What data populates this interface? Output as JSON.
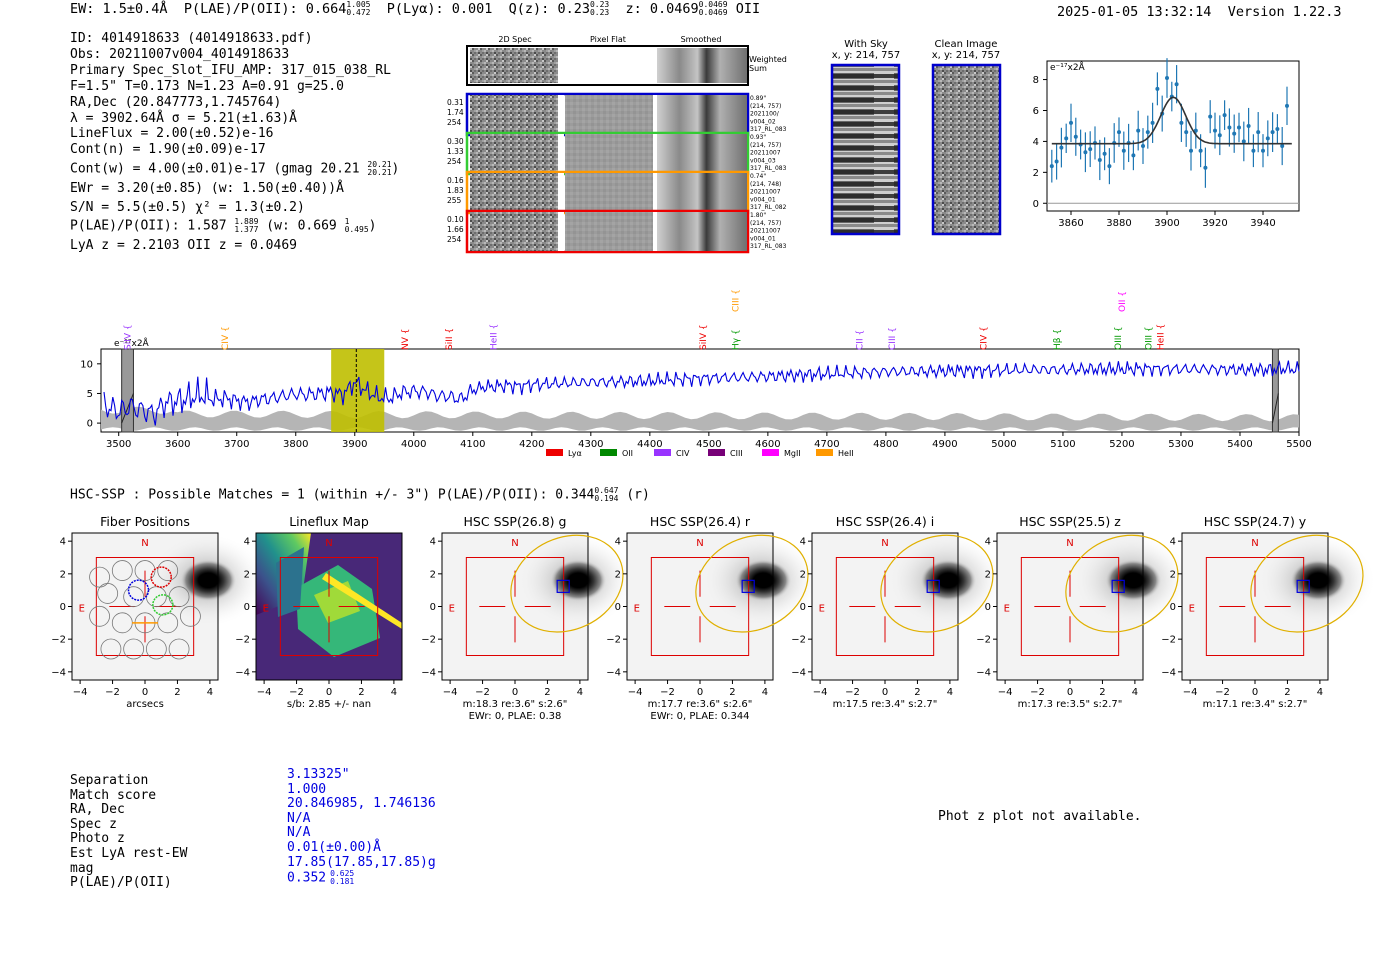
{
  "header": {
    "ew": "EW: 1.5±0.4Å",
    "plae_label": "P(LAE)/P(OII): 0.664",
    "plae_hi": "1.005",
    "plae_lo": "0.472",
    "plya": "P(Lyα): 0.001",
    "qz_label": "Q(z): 0.23",
    "qz_hi": "0.23",
    "qz_lo": "0.23",
    "z_label": "z: 0.0469",
    "z_hi": "0.0469",
    "z_lo": "0.0469",
    "z_line": "OII",
    "datetime": "2025-01-05 13:32:14",
    "version": "Version 1.22.3"
  },
  "info": {
    "id": "ID: 4014918633 (4014918633.pdf)",
    "obs": "Obs: 20211007v004_4014918633",
    "primary": "Primary Spec_Slot_IFU_AMP: 317_015_038_RL",
    "params": "F=1.5\"  T=0.173  N=1.23  A=0.91  g=25.0",
    "radec": "RA,Dec (20.847773,1.745764)",
    "lambda": "λ = 3902.64Å  σ = 5.21(±1.63)Å",
    "lineflux": "LineFlux = 2.00(±0.52)e-16",
    "contn": "Cont(n) = 1.90(±0.09)e-17",
    "contw": "Cont(w) = 4.00(±0.01)e-17 (gmag 20.21",
    "contw_hi": "20.21",
    "contw_lo": "20.21",
    "ewr": "EWr = 3.20(±0.85) (w: 1.50(±0.40))Å",
    "sn": "S/N = 5.5(±0.5)  χ² = 1.3(±0.2)",
    "plae2": "P(LAE)/P(OII): 1.587",
    "plae2_hi": "1.889",
    "plae2_lo": "1.377",
    "plae2_w": "(w: 0.669",
    "plae2_w_hi": "1",
    "plae2_w_lo": "0.495",
    "lya": "LyA z = 2.2103   OII z = 0.0469"
  },
  "cutouts": {
    "col_titles": [
      "2D Spec",
      "Pixel Flat",
      "Smoothed"
    ],
    "weighted_sum": [
      "Weighted",
      "Sum"
    ],
    "rows": [
      {
        "left": [
          "0.31",
          "1.74",
          "254"
        ],
        "right": [
          "0.89\"",
          "(214, 757)",
          "2021100/",
          "v004_02",
          "317_RL_083"
        ],
        "color": "#0000cc"
      },
      {
        "left": [
          "0.30",
          "1.33",
          "254"
        ],
        "right": [
          "0.93\"",
          "(214, 757)",
          "20211007",
          "v004_03",
          "317_RL_083"
        ],
        "color": "#33cc33"
      },
      {
        "left": [
          "0.16",
          "1.83",
          "255"
        ],
        "right": [
          "0.74\"",
          "(214, 748)",
          "20211007",
          "v004_01",
          "317_RL_082"
        ],
        "color": "#ff9900"
      },
      {
        "left": [
          "0.10",
          "1.66",
          "254"
        ],
        "right": [
          "1.80\"",
          "(214, 757)",
          "20211007",
          "v004_01",
          "317_RL_083"
        ],
        "color": "#ee0000"
      }
    ],
    "with_sky_title": [
      "With Sky",
      "x, y: 214, 757"
    ],
    "clean_title": [
      "Clean Image",
      "x, y: 214, 757"
    ]
  },
  "line_fit": {
    "type": "line",
    "ylabel": "e⁻¹⁷x2Å",
    "xlim": [
      3850,
      3955
    ],
    "ylim": [
      -0.5,
      9.2
    ],
    "xticks": [
      3860,
      3880,
      3900,
      3920,
      3940
    ],
    "yticks": [
      0,
      2,
      4,
      6,
      8
    ],
    "continuum": 3.85,
    "gauss_amp": 3.0,
    "gauss_mu": 3902.6,
    "gauss_sigma": 5.2,
    "points": [
      [
        3852,
        2.4
      ],
      [
        3854,
        2.7
      ],
      [
        3856,
        3.6
      ],
      [
        3858,
        4.2
      ],
      [
        3860,
        5.2
      ],
      [
        3862,
        4.3
      ],
      [
        3864,
        3.8
      ],
      [
        3866,
        3.3
      ],
      [
        3868,
        3.5
      ],
      [
        3870,
        3.9
      ],
      [
        3872,
        2.8
      ],
      [
        3874,
        3.2
      ],
      [
        3876,
        2.4
      ],
      [
        3878,
        3.9
      ],
      [
        3880,
        4.6
      ],
      [
        3882,
        3.4
      ],
      [
        3884,
        3.9
      ],
      [
        3886,
        3.1
      ],
      [
        3888,
        4.7
      ],
      [
        3890,
        3.7
      ],
      [
        3892,
        4.6
      ],
      [
        3894,
        5.2
      ],
      [
        3896,
        7.4
      ],
      [
        3898,
        5.8
      ],
      [
        3900,
        8.1
      ],
      [
        3902,
        6.9
      ],
      [
        3904,
        7.7
      ],
      [
        3906,
        5.2
      ],
      [
        3908,
        4.6
      ],
      [
        3910,
        3.4
      ],
      [
        3912,
        4.7
      ],
      [
        3914,
        3.4
      ],
      [
        3916,
        2.3
      ],
      [
        3918,
        5.6
      ],
      [
        3920,
        4.7
      ],
      [
        3922,
        4.4
      ],
      [
        3924,
        5.7
      ],
      [
        3926,
        4.9
      ],
      [
        3928,
        4.5
      ],
      [
        3930,
        4.9
      ],
      [
        3932,
        4.0
      ],
      [
        3934,
        5.0
      ],
      [
        3936,
        3.4
      ],
      [
        3938,
        4.6
      ],
      [
        3940,
        3.4
      ],
      [
        3942,
        4.2
      ],
      [
        3944,
        4.6
      ],
      [
        3946,
        4.8
      ],
      [
        3948,
        3.7
      ],
      [
        3950,
        6.3
      ]
    ]
  },
  "full_spectrum": {
    "type": "line",
    "ylabel": "e⁻¹⁷x2Å",
    "xlim": [
      3470,
      5500
    ],
    "ylim": [
      -1.5,
      12.5
    ],
    "xticks": [
      3500,
      3600,
      3700,
      3800,
      3900,
      4000,
      4100,
      4200,
      4300,
      4400,
      4500,
      4600,
      4700,
      4800,
      4900,
      5000,
      5100,
      5200,
      5300,
      5400,
      5500
    ],
    "yticks": [
      0,
      5,
      10
    ],
    "highlight": [
      3860,
      3950
    ],
    "dashed_line": 3902.6,
    "masked": [
      [
        3505,
        3525
      ],
      [
        5455,
        5465
      ]
    ],
    "line_markers": [
      {
        "label": "SiIV",
        "x": 3515,
        "color": "#9933ff"
      },
      {
        "label": "CIV",
        "x": 3680,
        "color": "#ff9900"
      },
      {
        "label": "NV",
        "x": 3985,
        "color": "#ee0000"
      },
      {
        "label": "SiII",
        "x": 4060,
        "color": "#ee0000"
      },
      {
        "label": "HeII",
        "x": 4135,
        "color": "#9933ff"
      },
      {
        "label": "SiIV",
        "x": 4490,
        "color": "#ee0000"
      },
      {
        "label": "CIII",
        "x": 4545,
        "color": "#ff9900",
        "high": true
      },
      {
        "label": "Hγ",
        "x": 4545,
        "color": "#009900"
      },
      {
        "label": "CII",
        "x": 4755,
        "color": "#9933ff"
      },
      {
        "label": "CIII",
        "x": 4810,
        "color": "#9933ff"
      },
      {
        "label": "CIV",
        "x": 4965,
        "color": "#ee0000"
      },
      {
        "label": "Hβ",
        "x": 5090,
        "color": "#009900"
      },
      {
        "label": "OII",
        "x": 5200,
        "color": "#ff00ff",
        "high": true
      },
      {
        "label": "OIII",
        "x": 5193,
        "color": "#009900"
      },
      {
        "label": "OIII",
        "x": 5245,
        "color": "#009900"
      },
      {
        "label": "HeII",
        "x": 5265,
        "color": "#ee0000"
      }
    ],
    "legend": [
      {
        "label": "Lyα",
        "color": "#ee0000"
      },
      {
        "label": "OII",
        "color": "#008800"
      },
      {
        "label": "CIV",
        "color": "#9933ff"
      },
      {
        "label": "CIII",
        "color": "#770077"
      },
      {
        "label": "MgII",
        "color": "#ff00ff"
      },
      {
        "label": "HeII",
        "color": "#ff9900"
      }
    ],
    "anchors": [
      [
        3475,
        3
      ],
      [
        3500,
        2
      ],
      [
        3520,
        2.8
      ],
      [
        3540,
        2.2
      ],
      [
        3560,
        1.5
      ],
      [
        3580,
        3.5
      ],
      [
        3600,
        3.7
      ],
      [
        3620,
        4.3
      ],
      [
        3640,
        4.8
      ],
      [
        3660,
        4.0
      ],
      [
        3680,
        4.2
      ],
      [
        3700,
        3.8
      ],
      [
        3720,
        3.5
      ],
      [
        3740,
        4.0
      ],
      [
        3760,
        4.2
      ],
      [
        3780,
        4.6
      ],
      [
        3800,
        4.9
      ],
      [
        3820,
        4.8
      ],
      [
        3840,
        5.0
      ],
      [
        3860,
        5.2
      ],
      [
        3880,
        4.8
      ],
      [
        3900,
        6.9
      ],
      [
        3920,
        5.4
      ],
      [
        3940,
        4.4
      ],
      [
        3960,
        4.2
      ],
      [
        3980,
        5.2
      ],
      [
        4000,
        5.4
      ],
      [
        4020,
        5.3
      ],
      [
        4040,
        4.6
      ],
      [
        4060,
        4.5
      ],
      [
        4080,
        4.0
      ],
      [
        4100,
        5.6
      ],
      [
        4120,
        6.1
      ],
      [
        4140,
        6.2
      ],
      [
        4160,
        6.4
      ],
      [
        4180,
        6.2
      ],
      [
        4200,
        6.5
      ],
      [
        4250,
        6.7
      ],
      [
        4300,
        6.9
      ],
      [
        4350,
        7.0
      ],
      [
        4400,
        7.1
      ],
      [
        4450,
        7.4
      ],
      [
        4500,
        7.6
      ],
      [
        4550,
        7.7
      ],
      [
        4600,
        7.9
      ],
      [
        4650,
        8.1
      ],
      [
        4700,
        8.3
      ],
      [
        4750,
        8.5
      ],
      [
        4800,
        8.7
      ],
      [
        4850,
        8.7
      ],
      [
        4900,
        8.8
      ],
      [
        4950,
        8.9
      ],
      [
        5000,
        8.9
      ],
      [
        5050,
        9.0
      ],
      [
        5100,
        9.0
      ],
      [
        5150,
        9.1
      ],
      [
        5200,
        9.1
      ],
      [
        5250,
        9.2
      ],
      [
        5300,
        9.1
      ],
      [
        5350,
        9.1
      ],
      [
        5400,
        9.0
      ],
      [
        5450,
        9.0
      ],
      [
        5480,
        9.2
      ],
      [
        5500,
        9.0
      ]
    ]
  },
  "hsc": {
    "line": "HSC-SSP : Possible Matches = 1 (within +/- 3\")  P(LAE)/P(OII): 0.344",
    "hi": "0.647",
    "lo": "0.194",
    "band": "(r)",
    "panels": [
      {
        "title": "Fiber Positions",
        "xlabel": "arcsecs",
        "sub": ""
      },
      {
        "title": "Lineflux Map",
        "xlabel": "s/b: 2.85 +/- nan",
        "sub": ""
      },
      {
        "title": "HSC SSP(26.8) g",
        "xlabel": "m:18.3  re:3.6\"  s:2.6\"",
        "sub": "EWr: 0, PLAE: 0.38"
      },
      {
        "title": "HSC SSP(26.4) r",
        "xlabel": "m:17.7  re:3.6\"  s:2.6\"",
        "sub": "EWr: 0, PLAE: 0.344"
      },
      {
        "title": "HSC SSP(26.4) i",
        "xlabel": "m:17.5  re:3.4\"  s:2.7\"",
        "sub": ""
      },
      {
        "title": "HSC SSP(25.5) z",
        "xlabel": "m:17.3  re:3.5\"  s:2.7\"",
        "sub": ""
      },
      {
        "title": "HSC SSP(24.7) y",
        "xlabel": "m:17.1  re:3.4\"  s:2.7\"",
        "sub": ""
      }
    ],
    "ticks": [
      "−4",
      "−2",
      "0",
      "2",
      "4"
    ],
    "north": "N",
    "east": "E"
  },
  "match": {
    "labels": [
      "Separation",
      "Match score",
      "RA, Dec",
      "Spec z",
      "Photo z",
      "Est LyA rest-EW",
      "mag",
      "P(LAE)/P(OII)"
    ],
    "values": [
      "3.13325\"",
      "1.000",
      "20.846985, 1.746136",
      "N/A",
      "N/A",
      "0.01(±0.00)Å",
      "17.85(17.85,17.85)g",
      "0.352"
    ],
    "plae_hi": "0.625",
    "plae_lo": "0.181"
  },
  "photz_msg": "Phot z plot not available."
}
